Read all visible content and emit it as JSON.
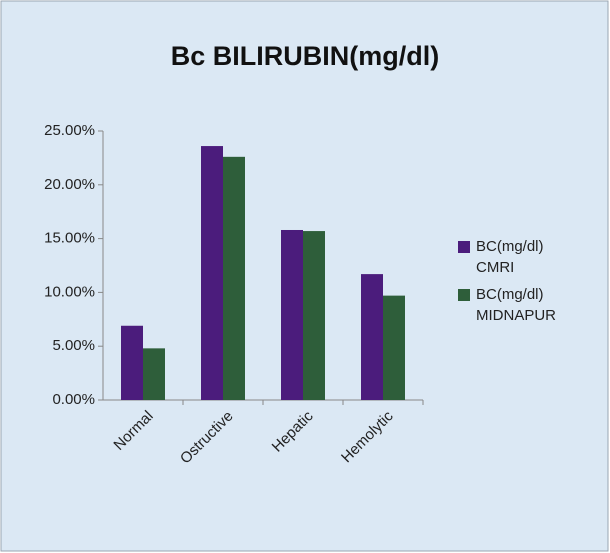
{
  "chart_data": {
    "type": "bar",
    "title": "Bc BILIRUBIN(mg/dl)",
    "categories": [
      "Normal",
      "Ostructive",
      "Hepatic",
      "Hemolytic"
    ],
    "series": [
      {
        "name": "BC(mg/dl) CMRI",
        "color": "#4b1c7c",
        "values": [
          6.9,
          23.6,
          15.8,
          11.7
        ]
      },
      {
        "name": "BC(mg/dl) MIDNAPUR",
        "color": "#2e5e3a",
        "values": [
          4.8,
          22.6,
          15.7,
          9.7
        ]
      }
    ],
    "ylim": [
      0,
      25
    ],
    "yticks": [
      {
        "value": 0,
        "label": "0.00%"
      },
      {
        "value": 5,
        "label": "5.00%"
      },
      {
        "value": 10,
        "label": "10.00%"
      },
      {
        "value": 15,
        "label": "15.00%"
      },
      {
        "value": 20,
        "label": "20.00%"
      },
      {
        "value": 25,
        "label": "25.00%"
      }
    ],
    "legend": "right"
  }
}
